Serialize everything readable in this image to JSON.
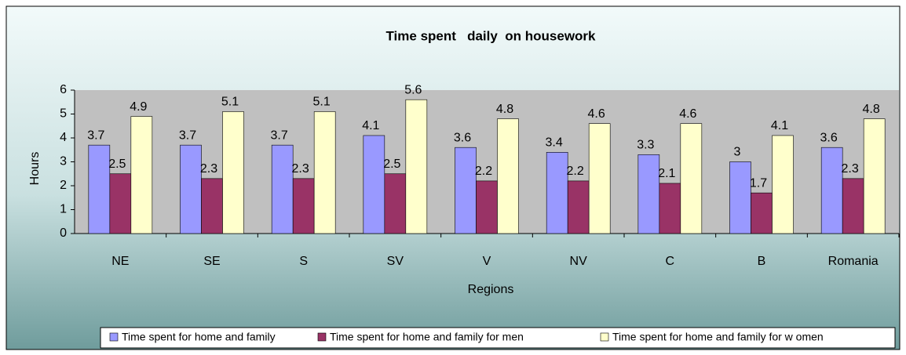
{
  "chart_data": {
    "type": "bar",
    "title": "Time spent   daily  on housework",
    "x_label": "Regions",
    "y_label": "Hours",
    "categories": [
      "NE",
      "SE",
      "S",
      "SV",
      "V",
      "NV",
      "C",
      "B",
      "Romania"
    ],
    "series": [
      {
        "name": "Time spent for home and family",
        "color": "#9999ff",
        "values": [
          3.7,
          3.7,
          3.7,
          4.1,
          3.6,
          3.4,
          3.3,
          3,
          3.6
        ]
      },
      {
        "name": "Time spent for home and family for men",
        "color": "#993366",
        "values": [
          2.5,
          2.3,
          2.3,
          2.5,
          2.2,
          2.2,
          2.1,
          1.7,
          2.3
        ]
      },
      {
        "name": "Time spent for home and family for w omen",
        "color": "#ffffcc",
        "values": [
          4.9,
          5.1,
          5.1,
          5.6,
          4.8,
          4.6,
          4.6,
          4.1,
          4.8
        ]
      }
    ],
    "ylim": [
      0,
      6
    ],
    "yticks": [
      0,
      1,
      2,
      3,
      4,
      5,
      6
    ],
    "grid": false,
    "legend": "bottom"
  }
}
